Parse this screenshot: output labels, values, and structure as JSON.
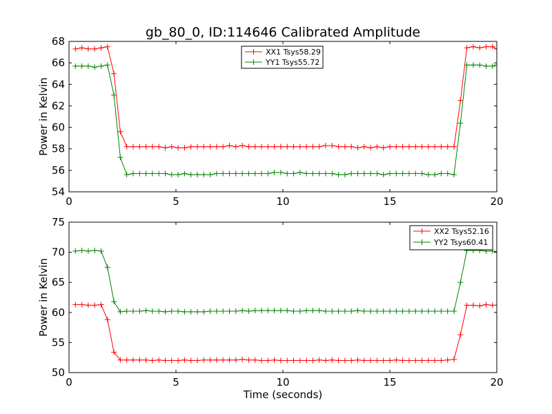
{
  "figure": {
    "title": "gb_80_0, ID:114646 Calibrated Amplitude",
    "xlabel": "Time (seconds)"
  },
  "chart_data": [
    {
      "type": "line",
      "ylabel": "Power in Kelvin",
      "xlim": [
        0,
        20
      ],
      "ylim": [
        54,
        68
      ],
      "xticks": [
        0,
        5,
        10,
        15,
        20
      ],
      "yticks": [
        54,
        56,
        58,
        60,
        62,
        64,
        66,
        68
      ],
      "grid": false,
      "legend_position": "top-center",
      "x": [
        0.3,
        0.6,
        0.9,
        1.2,
        1.5,
        1.8,
        2.1,
        2.4,
        2.7,
        3.0,
        3.3,
        3.6,
        3.9,
        4.2,
        4.5,
        4.8,
        5.1,
        5.4,
        5.7,
        6.0,
        6.3,
        6.6,
        6.9,
        7.2,
        7.5,
        7.8,
        8.1,
        8.4,
        8.7,
        9.0,
        9.3,
        9.6,
        9.9,
        10.2,
        10.5,
        10.8,
        11.1,
        11.4,
        11.7,
        12.0,
        12.3,
        12.6,
        12.9,
        13.2,
        13.5,
        13.8,
        14.1,
        14.4,
        14.7,
        15.0,
        15.3,
        15.6,
        15.9,
        16.2,
        16.5,
        16.8,
        17.1,
        17.4,
        17.7,
        18.0,
        18.3,
        18.6,
        18.9,
        19.2,
        19.5,
        19.8,
        20.0
      ],
      "series": [
        {
          "name": "XX1 Tsys58.29",
          "color": "#ff0000",
          "values": [
            67.3,
            67.4,
            67.3,
            67.3,
            67.4,
            67.5,
            65.0,
            59.6,
            58.2,
            58.2,
            58.2,
            58.2,
            58.2,
            58.2,
            58.1,
            58.2,
            58.1,
            58.1,
            58.2,
            58.2,
            58.2,
            58.2,
            58.2,
            58.2,
            58.3,
            58.2,
            58.3,
            58.2,
            58.2,
            58.2,
            58.2,
            58.2,
            58.2,
            58.2,
            58.2,
            58.2,
            58.2,
            58.2,
            58.2,
            58.3,
            58.3,
            58.2,
            58.2,
            58.2,
            58.1,
            58.2,
            58.1,
            58.2,
            58.1,
            58.2,
            58.2,
            58.2,
            58.2,
            58.2,
            58.2,
            58.2,
            58.2,
            58.2,
            58.2,
            58.2,
            62.5,
            67.4,
            67.5,
            67.4,
            67.5,
            67.5,
            67.3
          ]
        },
        {
          "name": "YY1 Tsys55.72",
          "color": "#008000",
          "values": [
            65.7,
            65.7,
            65.7,
            65.6,
            65.7,
            65.8,
            63.0,
            57.2,
            55.6,
            55.7,
            55.7,
            55.7,
            55.7,
            55.7,
            55.7,
            55.6,
            55.6,
            55.7,
            55.6,
            55.6,
            55.6,
            55.6,
            55.7,
            55.7,
            55.7,
            55.7,
            55.7,
            55.7,
            55.7,
            55.7,
            55.7,
            55.8,
            55.8,
            55.7,
            55.7,
            55.8,
            55.7,
            55.7,
            55.7,
            55.7,
            55.7,
            55.6,
            55.6,
            55.7,
            55.7,
            55.7,
            55.7,
            55.7,
            55.6,
            55.7,
            55.7,
            55.7,
            55.7,
            55.7,
            55.7,
            55.6,
            55.6,
            55.7,
            55.7,
            55.6,
            60.4,
            65.8,
            65.8,
            65.8,
            65.7,
            65.7,
            65.8
          ]
        }
      ]
    },
    {
      "type": "line",
      "ylabel": "Power in Kelvin",
      "xlim": [
        0,
        20
      ],
      "ylim": [
        50,
        75
      ],
      "xticks": [
        0,
        5,
        10,
        15,
        20
      ],
      "yticks": [
        50,
        55,
        60,
        65,
        70,
        75
      ],
      "grid": false,
      "legend_position": "top-right",
      "x": [
        0.3,
        0.6,
        0.9,
        1.2,
        1.5,
        1.8,
        2.1,
        2.4,
        2.7,
        3.0,
        3.3,
        3.6,
        3.9,
        4.2,
        4.5,
        4.8,
        5.1,
        5.4,
        5.7,
        6.0,
        6.3,
        6.6,
        6.9,
        7.2,
        7.5,
        7.8,
        8.1,
        8.4,
        8.7,
        9.0,
        9.3,
        9.6,
        9.9,
        10.2,
        10.5,
        10.8,
        11.1,
        11.4,
        11.7,
        12.0,
        12.3,
        12.6,
        12.9,
        13.2,
        13.5,
        13.8,
        14.1,
        14.4,
        14.7,
        15.0,
        15.3,
        15.6,
        15.9,
        16.2,
        16.5,
        16.8,
        17.1,
        17.4,
        17.7,
        18.0,
        18.3,
        18.6,
        18.9,
        19.2,
        19.5,
        19.8,
        20.0
      ],
      "series": [
        {
          "name": "XX2 Tsys52.16",
          "color": "#ff0000",
          "values": [
            61.3,
            61.3,
            61.2,
            61.2,
            61.3,
            58.8,
            53.4,
            52.1,
            52.1,
            52.1,
            52.1,
            52.1,
            52.0,
            52.1,
            52.0,
            52.0,
            52.0,
            52.1,
            52.0,
            52.0,
            52.1,
            52.1,
            52.1,
            52.1,
            52.1,
            52.1,
            52.2,
            52.1,
            52.1,
            52.0,
            52.0,
            52.1,
            52.0,
            52.0,
            52.0,
            52.0,
            52.0,
            52.0,
            52.1,
            52.0,
            52.1,
            52.0,
            52.0,
            52.0,
            52.1,
            52.0,
            52.0,
            52.0,
            52.0,
            52.0,
            52.1,
            52.0,
            52.0,
            52.0,
            52.0,
            52.0,
            52.0,
            52.0,
            52.1,
            52.2,
            56.3,
            61.2,
            61.2,
            61.1,
            61.3,
            61.2,
            61.2
          ]
        },
        {
          "name": "YY2 Tsys60.41",
          "color": "#008000",
          "values": [
            70.2,
            70.3,
            70.2,
            70.3,
            70.2,
            67.5,
            61.8,
            60.1,
            60.2,
            60.2,
            60.2,
            60.3,
            60.2,
            60.2,
            60.1,
            60.2,
            60.2,
            60.1,
            60.1,
            60.1,
            60.1,
            60.2,
            60.2,
            60.2,
            60.2,
            60.2,
            60.3,
            60.2,
            60.3,
            60.3,
            60.3,
            60.3,
            60.3,
            60.3,
            60.2,
            60.2,
            60.3,
            60.3,
            60.3,
            60.2,
            60.2,
            60.2,
            60.2,
            60.2,
            60.3,
            60.2,
            60.2,
            60.2,
            60.2,
            60.2,
            60.2,
            60.2,
            60.2,
            60.2,
            60.2,
            60.2,
            60.2,
            60.2,
            60.2,
            60.2,
            65.0,
            70.3,
            70.3,
            70.3,
            70.2,
            70.2,
            70.1
          ]
        }
      ]
    }
  ]
}
